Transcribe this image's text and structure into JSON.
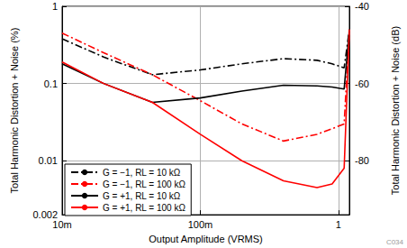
{
  "chart_data": {
    "type": "line",
    "x_label": "Output Amplitude (VRMS)",
    "y_label": "Total Harmonic Distortion + Noise (%)",
    "y2_label": "Total Harmonic Distortion + Noise (dB)",
    "annotation": "C034",
    "log": true,
    "grid": true,
    "legend": "lower left",
    "xlim": [
      0.01,
      1.2
    ],
    "xticks": [
      {
        "value": 0.01,
        "label": "10m"
      },
      {
        "value": 0.1,
        "label": "100m"
      },
      {
        "value": 1,
        "label": "1"
      }
    ],
    "ylim": [
      0.002,
      1
    ],
    "yticks": [
      0.002,
      0.01,
      0.1,
      1
    ],
    "y2lim": [
      -93.98,
      -40
    ],
    "y2ticks": [
      -80,
      -60,
      -40
    ],
    "x": [
      0.01,
      0.02,
      0.045,
      0.1,
      0.2,
      0.4,
      0.7,
      0.9,
      1.1,
      1.2
    ],
    "series": [
      {
        "name": "G = −1, RL = 10 kΩ",
        "color": "#000000",
        "line_style": "dashdot",
        "values": [
          0.38,
          0.22,
          0.13,
          0.15,
          0.18,
          0.21,
          0.2,
          0.18,
          0.16,
          0.5
        ]
      },
      {
        "name": "G = −1, RL = 100 kΩ",
        "color": "#ff0000",
        "line_style": "dashdot",
        "values": [
          0.45,
          0.25,
          0.13,
          0.06,
          0.03,
          0.018,
          0.022,
          0.026,
          0.03,
          0.5
        ]
      },
      {
        "name": "G = +1, RL = 10 kΩ",
        "color": "#000000",
        "line_style": "solid",
        "values": [
          0.18,
          0.1,
          0.057,
          0.065,
          0.08,
          0.095,
          0.093,
          0.09,
          0.085,
          0.5
        ]
      },
      {
        "name": "G = +1, RL = 100 kΩ",
        "color": "#ff0000",
        "line_style": "solid",
        "values": [
          0.19,
          0.1,
          0.057,
          0.022,
          0.01,
          0.0055,
          0.0045,
          0.005,
          0.008,
          0.5
        ]
      }
    ]
  }
}
